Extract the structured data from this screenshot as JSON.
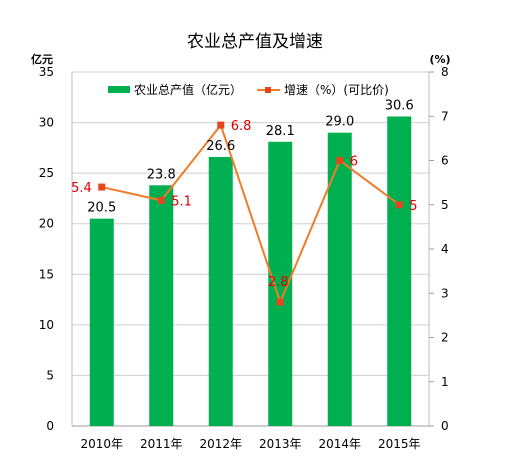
{
  "chart_data": {
    "type": "bar",
    "title": "农业总产值及增速",
    "y_left_unit": "亿元",
    "y_right_unit": "(%)",
    "categories": [
      "2010年",
      "2011年",
      "2012年",
      "2013年",
      "2014年",
      "2015年"
    ],
    "series": [
      {
        "name": "农业总产值（亿元）",
        "type": "bar",
        "axis": "left",
        "values": [
          20.5,
          23.8,
          26.6,
          28.1,
          29.0,
          30.6
        ],
        "labels": [
          "20.5",
          "23.8",
          "26.6",
          "28.1",
          "29.0",
          "30.6"
        ],
        "color": "#00b050"
      },
      {
        "name": "增速（%）(可比价)",
        "type": "line",
        "axis": "right",
        "values": [
          5.4,
          5.1,
          6.8,
          2.8,
          6.0,
          5.0
        ],
        "labels": [
          "5.4",
          "5.1",
          "6.8",
          "2.8",
          "6",
          "5"
        ],
        "color": "#f07c28",
        "marker_color": "#e6461e",
        "label_color": "#e00000"
      }
    ],
    "y_left": {
      "min": 0,
      "max": 35,
      "step": 5,
      "ticks": [
        "0",
        "5",
        "10",
        "15",
        "20",
        "25",
        "30",
        "35"
      ]
    },
    "y_right": {
      "min": 0,
      "max": 8,
      "step": 1,
      "ticks": [
        "0",
        "1",
        "2",
        "3",
        "4",
        "5",
        "6",
        "7",
        "8"
      ]
    },
    "grid": true,
    "legend_position": "top"
  }
}
